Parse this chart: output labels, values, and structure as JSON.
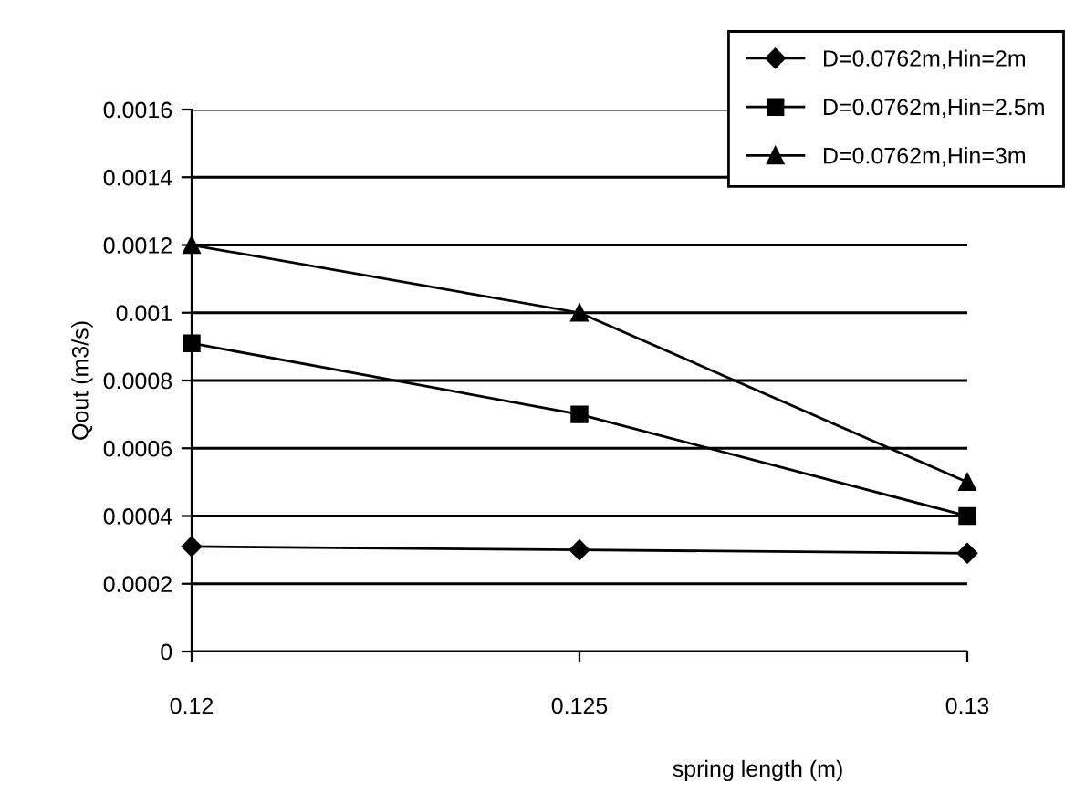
{
  "chart_data": {
    "type": "line",
    "xlabel": "spring length (m)",
    "ylabel": "Qout (m3/s)",
    "x": [
      0.12,
      0.125,
      0.13
    ],
    "series": [
      {
        "name": "D=0.0762m,Hin=2m",
        "color": "#000000",
        "marker": "diamond",
        "values": [
          0.00031,
          0.0003,
          0.00029
        ]
      },
      {
        "name": "D=0.0762m,Hin=2.5m",
        "color": "#000000",
        "marker": "square",
        "values": [
          0.00091,
          0.0007,
          0.0004
        ]
      },
      {
        "name": "D=0.0762m,Hin=3m",
        "color": "#000000",
        "marker": "triangle",
        "values": [
          0.0012,
          0.001,
          0.0005
        ]
      }
    ],
    "xlim": [
      0.12,
      0.13
    ],
    "xticks": [
      0.12,
      0.125,
      0.13
    ],
    "ylim": [
      0,
      0.0016
    ],
    "yticks": [
      0,
      0.0002,
      0.0004,
      0.0006,
      0.0008,
      0.001,
      0.0012,
      0.0014,
      0.0016
    ],
    "grid": "y",
    "legend": "top right",
    "line_style": "solid"
  }
}
